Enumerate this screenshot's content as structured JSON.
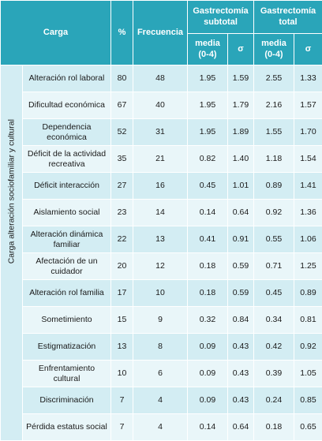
{
  "header": {
    "carga": "Carga",
    "pct": "%",
    "frecuencia": "Frecuencia",
    "subtotal": "Gastrectomía\nsubtotal",
    "total": "Gastrectomía\ntotal",
    "sub_columns": [
      "media\n(0-4)",
      "σ",
      "media\n(0-4)",
      "σ"
    ]
  },
  "side_label": "Carga alteración sociofamiliar y cultural",
  "rows": [
    [
      "Alteración rol laboral",
      "80",
      "48",
      "1.95",
      "1.59",
      "2.55",
      "1.33"
    ],
    [
      "Dificultad económica",
      "67",
      "40",
      "1.95",
      "1.79",
      "2.16",
      "1.57"
    ],
    [
      "Dependencia\neconómica",
      "52",
      "31",
      "1.95",
      "1.89",
      "1.55",
      "1.70"
    ],
    [
      "Déficit de la actividad\nrecreativa",
      "35",
      "21",
      "0.82",
      "1.40",
      "1.18",
      "1.54"
    ],
    [
      "Déficit interacción",
      "27",
      "16",
      "0.45",
      "1.01",
      "0.89",
      "1.41"
    ],
    [
      "Aislamiento social",
      "23",
      "14",
      "0.14",
      "0.64",
      "0.92",
      "1.36"
    ],
    [
      "Alteración dinámica\nfamiliar",
      "22",
      "13",
      "0.41",
      "0.91",
      "0.55",
      "1.06"
    ],
    [
      "Afectación de un\ncuidador",
      "20",
      "12",
      "0.18",
      "0.59",
      "0.71",
      "1.25"
    ],
    [
      "Alteración rol familia",
      "17",
      "10",
      "0.18",
      "0.59",
      "0.45",
      "0.89"
    ],
    [
      "Sometimiento",
      "15",
      "9",
      "0.32",
      "0.84",
      "0.34",
      "0.81"
    ],
    [
      "Estigmatización",
      "13",
      "8",
      "0.09",
      "0.43",
      "0.42",
      "0.92"
    ],
    [
      "Enfrentamiento\ncultural",
      "10",
      "6",
      "0.09",
      "0.43",
      "0.39",
      "1.05"
    ],
    [
      "Discriminación",
      "7",
      "4",
      "0.09",
      "0.43",
      "0.24",
      "0.85"
    ],
    [
      "Pérdida estatus social",
      "7",
      "4",
      "0.14",
      "0.64",
      "0.18",
      "0.65"
    ]
  ]
}
